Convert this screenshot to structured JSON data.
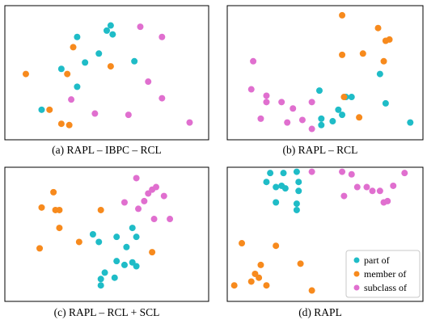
{
  "colors": {
    "part_of": "#1fbcc7",
    "member_of": "#f78a1d",
    "subclass_of": "#e06fcf"
  },
  "chart_data": [
    {
      "type": "scatter",
      "caption": "(a) RAPL – IBPC – RCL",
      "xlim": [
        0,
        1
      ],
      "ylim": [
        0,
        1
      ],
      "series": [
        {
          "class": "part_of",
          "points": [
            [
              0.35,
              0.78
            ],
            [
              0.5,
              0.83
            ],
            [
              0.53,
              0.8
            ],
            [
              0.52,
              0.87
            ],
            [
              0.46,
              0.65
            ],
            [
              0.64,
              0.59
            ],
            [
              0.27,
              0.53
            ],
            [
              0.39,
              0.58
            ],
            [
              0.35,
              0.39
            ],
            [
              0.17,
              0.21
            ]
          ]
        },
        {
          "class": "member_of",
          "points": [
            [
              0.33,
              0.7
            ],
            [
              0.52,
              0.55
            ],
            [
              0.09,
              0.49
            ],
            [
              0.3,
              0.49
            ],
            [
              0.21,
              0.21
            ],
            [
              0.27,
              0.1
            ],
            [
              0.31,
              0.09
            ]
          ]
        },
        {
          "class": "subclass_of",
          "points": [
            [
              0.67,
              0.86
            ],
            [
              0.78,
              0.78
            ],
            [
              0.71,
              0.43
            ],
            [
              0.78,
              0.3
            ],
            [
              0.32,
              0.29
            ],
            [
              0.44,
              0.18
            ],
            [
              0.61,
              0.17
            ],
            [
              0.92,
              0.11
            ]
          ]
        }
      ]
    },
    {
      "type": "scatter",
      "caption": "(b) RAPL – RCL",
      "xlim": [
        0,
        1
      ],
      "ylim": [
        0,
        1
      ],
      "series": [
        {
          "class": "part_of",
          "points": [
            [
              0.79,
              0.49
            ],
            [
              0.82,
              0.26
            ],
            [
              0.95,
              0.11
            ],
            [
              0.47,
              0.36
            ],
            [
              0.61,
              0.31
            ],
            [
              0.64,
              0.31
            ],
            [
              0.57,
              0.21
            ],
            [
              0.59,
              0.17
            ],
            [
              0.48,
              0.14
            ],
            [
              0.54,
              0.12
            ],
            [
              0.48,
              0.09
            ]
          ]
        },
        {
          "class": "member_of",
          "points": [
            [
              0.59,
              0.95
            ],
            [
              0.78,
              0.85
            ],
            [
              0.82,
              0.75
            ],
            [
              0.84,
              0.76
            ],
            [
              0.59,
              0.64
            ],
            [
              0.7,
              0.65
            ],
            [
              0.81,
              0.59
            ],
            [
              0.6,
              0.31
            ],
            [
              0.68,
              0.15
            ]
          ]
        },
        {
          "class": "subclass_of",
          "points": [
            [
              0.12,
              0.59
            ],
            [
              0.11,
              0.37
            ],
            [
              0.19,
              0.32
            ],
            [
              0.19,
              0.27
            ],
            [
              0.27,
              0.27
            ],
            [
              0.16,
              0.14
            ],
            [
              0.43,
              0.27
            ],
            [
              0.33,
              0.22
            ],
            [
              0.3,
              0.11
            ],
            [
              0.38,
              0.13
            ],
            [
              0.43,
              0.06
            ]
          ]
        }
      ]
    },
    {
      "type": "scatter",
      "caption": "(c) RAPL – RCL + SCL",
      "xlim": [
        0,
        1
      ],
      "ylim": [
        0,
        1
      ],
      "series": [
        {
          "class": "part_of",
          "points": [
            [
              0.43,
              0.5
            ],
            [
              0.46,
              0.44
            ],
            [
              0.55,
              0.48
            ],
            [
              0.63,
              0.55
            ],
            [
              0.65,
              0.48
            ],
            [
              0.6,
              0.4
            ],
            [
              0.55,
              0.29
            ],
            [
              0.59,
              0.26
            ],
            [
              0.63,
              0.28
            ],
            [
              0.65,
              0.25
            ],
            [
              0.49,
              0.2
            ],
            [
              0.47,
              0.15
            ],
            [
              0.47,
              0.1
            ],
            [
              0.54,
              0.16
            ]
          ]
        },
        {
          "class": "member_of",
          "points": [
            [
              0.23,
              0.83
            ],
            [
              0.17,
              0.71
            ],
            [
              0.24,
              0.69
            ],
            [
              0.26,
              0.69
            ],
            [
              0.47,
              0.69
            ],
            [
              0.26,
              0.55
            ],
            [
              0.16,
              0.39
            ],
            [
              0.36,
              0.44
            ],
            [
              0.73,
              0.36
            ]
          ]
        },
        {
          "class": "subclass_of",
          "points": [
            [
              0.65,
              0.94
            ],
            [
              0.71,
              0.82
            ],
            [
              0.73,
              0.85
            ],
            [
              0.75,
              0.87
            ],
            [
              0.79,
              0.8
            ],
            [
              0.59,
              0.75
            ],
            [
              0.66,
              0.7
            ],
            [
              0.69,
              0.76
            ],
            [
              0.74,
              0.62
            ],
            [
              0.82,
              0.62
            ]
          ]
        }
      ]
    },
    {
      "type": "scatter",
      "caption": "(d) RAPL",
      "xlim": [
        0,
        1
      ],
      "ylim": [
        0,
        1
      ],
      "series": [
        {
          "name": "part of",
          "class": "part_of",
          "points": [
            [
              0.21,
              0.98
            ],
            [
              0.28,
              0.98
            ],
            [
              0.35,
              0.99
            ],
            [
              0.36,
              0.91
            ],
            [
              0.19,
              0.91
            ],
            [
              0.24,
              0.87
            ],
            [
              0.27,
              0.88
            ],
            [
              0.29,
              0.86
            ],
            [
              0.36,
              0.84
            ],
            [
              0.24,
              0.75
            ],
            [
              0.35,
              0.74
            ],
            [
              0.35,
              0.69
            ]
          ]
        },
        {
          "name": "member of",
          "class": "member_of",
          "points": [
            [
              0.06,
              0.43
            ],
            [
              0.24,
              0.41
            ],
            [
              0.16,
              0.26
            ],
            [
              0.37,
              0.27
            ],
            [
              0.13,
              0.19
            ],
            [
              0.15,
              0.16
            ],
            [
              0.11,
              0.13
            ],
            [
              0.02,
              0.1
            ],
            [
              0.19,
              0.1
            ],
            [
              0.43,
              0.06
            ]
          ]
        },
        {
          "name": "subclass of",
          "class": "subclass_of",
          "points": [
            [
              0.43,
              0.99
            ],
            [
              0.59,
              0.99
            ],
            [
              0.64,
              0.97
            ],
            [
              0.92,
              0.98
            ],
            [
              0.67,
              0.87
            ],
            [
              0.72,
              0.87
            ],
            [
              0.75,
              0.84
            ],
            [
              0.79,
              0.84
            ],
            [
              0.86,
              0.88
            ],
            [
              0.83,
              0.76
            ],
            [
              0.81,
              0.75
            ],
            [
              0.6,
              0.8
            ]
          ]
        }
      ]
    }
  ]
}
